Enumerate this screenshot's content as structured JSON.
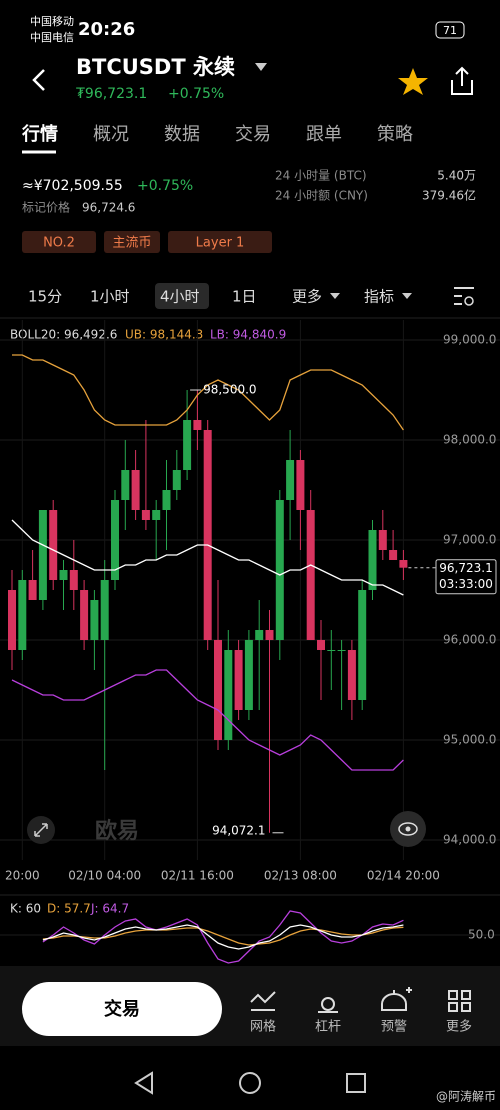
{
  "status": {
    "carrier1": "中国移动",
    "carrier2": "中国电信",
    "time": "20:26",
    "battery": "71"
  },
  "header": {
    "title": "BTCUSDT 永续",
    "price": "₮96,723.1",
    "change": "+0.75%"
  },
  "tabs": [
    "行情",
    "概况",
    "数据",
    "交易",
    "跟单",
    "策略"
  ],
  "info": {
    "cny_price": "≈¥702,509.55",
    "cny_change": "+0.75%",
    "mark_label": "标记价格",
    "mark_price": "96,724.6",
    "vol_label": "24 小时量 (BTC)",
    "vol": "5.40万",
    "amount_label": "24 小时额 (CNY)",
    "amount": "379.46亿",
    "tags": [
      "NO.2",
      "主流币",
      "Layer 1"
    ]
  },
  "intervals": [
    "15分",
    "1小时",
    "4小时",
    "1日",
    "更多",
    "指标"
  ],
  "chart": {
    "type": "candlestick",
    "boll_label": "BOLL20: 96,492.6",
    "ub_label": "UB: 98,144.3",
    "lb_label": "LB: 94,840.9",
    "categories": [
      null,
      "20:00",
      null,
      null,
      null,
      null,
      null,
      null,
      null,
      "02/10 04:00",
      null,
      null,
      null,
      null,
      null,
      null,
      null,
      null,
      "02/11 16:00",
      null,
      null,
      null,
      null,
      null,
      null,
      null,
      null,
      null,
      "02/13 08:00",
      null,
      null,
      null,
      null,
      null,
      null,
      null,
      null,
      null,
      "02/14 20:00"
    ],
    "open": [
      96500,
      95900,
      96600,
      96400,
      97300,
      96600,
      96700,
      96500,
      96000,
      96000,
      96600,
      97400,
      97700,
      97300,
      97200,
      97300,
      97500,
      97700,
      98200,
      98100,
      96000,
      95000,
      95900,
      95300,
      96000,
      96100,
      96000,
      97400,
      97800,
      97300,
      96000,
      95900,
      95900,
      95900,
      95400,
      96500,
      97100,
      96900,
      96800
    ],
    "high": [
      96700,
      96700,
      96900,
      97300,
      97400,
      96800,
      97000,
      96600,
      96500,
      96800,
      97500,
      98000,
      97900,
      98200,
      97400,
      97800,
      97900,
      98500,
      98500,
      98200,
      96600,
      96100,
      96000,
      96100,
      96400,
      96300,
      97500,
      98100,
      97900,
      97500,
      96200,
      96100,
      96000,
      96000,
      96600,
      97200,
      97300,
      97100,
      96900
    ],
    "low": [
      95700,
      95800,
      96400,
      96300,
      96500,
      96300,
      96300,
      95900,
      95700,
      94700,
      96500,
      97100,
      97200,
      97100,
      96800,
      96900,
      97400,
      97600,
      97900,
      95900,
      94900,
      94900,
      95200,
      95200,
      95300,
      94072.1,
      95800,
      97000,
      96900,
      96000,
      95400,
      95500,
      95300,
      95200,
      95300,
      96400,
      96800,
      96800,
      96600
    ],
    "close": [
      95900,
      96600,
      96400,
      97300,
      96600,
      96700,
      96500,
      96000,
      96400,
      96600,
      97400,
      97700,
      97300,
      97200,
      97300,
      97500,
      97700,
      98200,
      98100,
      96000,
      95000,
      95900,
      95300,
      96000,
      96100,
      96000,
      97400,
      97800,
      97300,
      96000,
      95900,
      95900,
      95900,
      95400,
      96500,
      97100,
      96900,
      96800,
      96723.1
    ],
    "upper": [
      98850,
      98850,
      98800,
      98800,
      98750,
      98700,
      98650,
      98500,
      98300,
      98200,
      98150,
      98150,
      98150,
      98150,
      98150,
      98150,
      98200,
      98300,
      98450,
      98550,
      98600,
      98550,
      98500,
      98400,
      98300,
      98200,
      98300,
      98600,
      98650,
      98700,
      98700,
      98700,
      98650,
      98600,
      98550,
      98450,
      98350,
      98250,
      98100
    ],
    "mid": [
      97200,
      97100,
      97000,
      96950,
      96900,
      96850,
      96800,
      96750,
      96700,
      96700,
      96700,
      96750,
      96750,
      96800,
      96800,
      96850,
      96850,
      96900,
      96950,
      96950,
      96900,
      96850,
      96800,
      96800,
      96750,
      96700,
      96650,
      96700,
      96700,
      96750,
      96700,
      96650,
      96600,
      96600,
      96600,
      96550,
      96550,
      96500,
      96450
    ],
    "lower": [
      95600,
      95550,
      95500,
      95450,
      95450,
      95400,
      95400,
      95400,
      95450,
      95500,
      95550,
      95600,
      95650,
      95650,
      95700,
      95700,
      95600,
      95500,
      95400,
      95350,
      95300,
      95200,
      95100,
      95000,
      94950,
      94900,
      94850,
      94900,
      94950,
      95050,
      95000,
      94900,
      94800,
      94700,
      94700,
      94700,
      94700,
      94700,
      94800
    ],
    "colors": {
      "up": "#27a74f",
      "down": "#d8345f",
      "upper": "#e6a23c",
      "mid": "#ffffff",
      "lower": "#b83fdc"
    },
    "ylim": [
      94000,
      99000
    ],
    "yticks": [
      {
        "value": 99000,
        "label": "99,000.0"
      },
      {
        "value": 98000,
        "label": "98,000.0"
      },
      {
        "value": 97000,
        "label": "97,000.0"
      },
      {
        "value": 96000,
        "label": "96,000.0"
      },
      {
        "value": 95000,
        "label": "95,000.0"
      },
      {
        "value": 94000,
        "label": "94,000.0"
      }
    ],
    "annotations": [
      {
        "value": 98500,
        "label": "98,500.0"
      },
      {
        "value": 94072.1,
        "label": "94,072.1"
      }
    ],
    "last": {
      "value": 96723.1,
      "label": "96,723.1",
      "countdown": "03:33:00"
    },
    "watermark": "欧易"
  },
  "kdj": {
    "k_label": "K: 60",
    "d_label": "D: 57.7",
    "j_label": "J: 64.7",
    "k": [
      null,
      null,
      null,
      45,
      48,
      52,
      50,
      47,
      45,
      48,
      52,
      56,
      58,
      56,
      55,
      56,
      58,
      60,
      58,
      50,
      42,
      38,
      36,
      38,
      42,
      44,
      50,
      58,
      60,
      58,
      54,
      50,
      48,
      48,
      50,
      54,
      57,
      58,
      60
    ],
    "d": [
      null,
      null,
      null,
      46,
      47,
      49,
      49,
      48,
      47,
      47,
      49,
      52,
      54,
      55,
      55,
      55,
      56,
      57,
      57,
      54,
      50,
      46,
      42,
      40,
      41,
      42,
      45,
      50,
      54,
      56,
      55,
      53,
      51,
      50,
      50,
      52,
      55,
      57,
      57.7
    ],
    "j": [
      null,
      null,
      null,
      43,
      50,
      58,
      52,
      45,
      41,
      50,
      58,
      64,
      66,
      58,
      55,
      58,
      62,
      66,
      60,
      42,
      26,
      22,
      24,
      34,
      44,
      48,
      60,
      74,
      72,
      62,
      52,
      44,
      42,
      44,
      50,
      58,
      61,
      60,
      64.7
    ],
    "yticks": [
      {
        "value": 50,
        "label": "50.0"
      }
    ]
  },
  "bottom": {
    "trade": "交易",
    "items": [
      "网格",
      "杠杆",
      "预警",
      "更多"
    ]
  },
  "footer": {
    "watermark": "@阿涛解币"
  }
}
